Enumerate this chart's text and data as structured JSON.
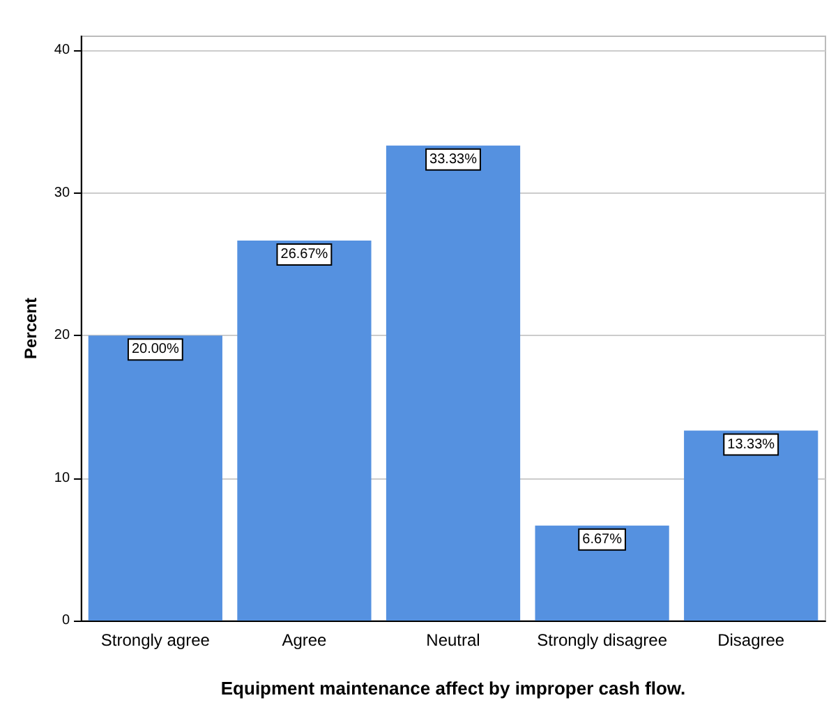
{
  "chart_data": {
    "type": "bar",
    "xlabel": "Equipment maintenance affect by improper cash flow.",
    "ylabel": "Percent",
    "categories": [
      "Strongly agree",
      "Agree",
      "Neutral",
      "Strongly disagree",
      "Disagree"
    ],
    "values": [
      20.0,
      26.67,
      33.33,
      6.67,
      13.33
    ],
    "value_labels": [
      "20.00%",
      "26.67%",
      "33.33%",
      "6.67%",
      "13.33%"
    ],
    "color": "#5591e0",
    "ylim": [
      0,
      41
    ],
    "yticks": [
      0,
      10,
      20,
      30,
      40
    ],
    "grid": "y"
  }
}
